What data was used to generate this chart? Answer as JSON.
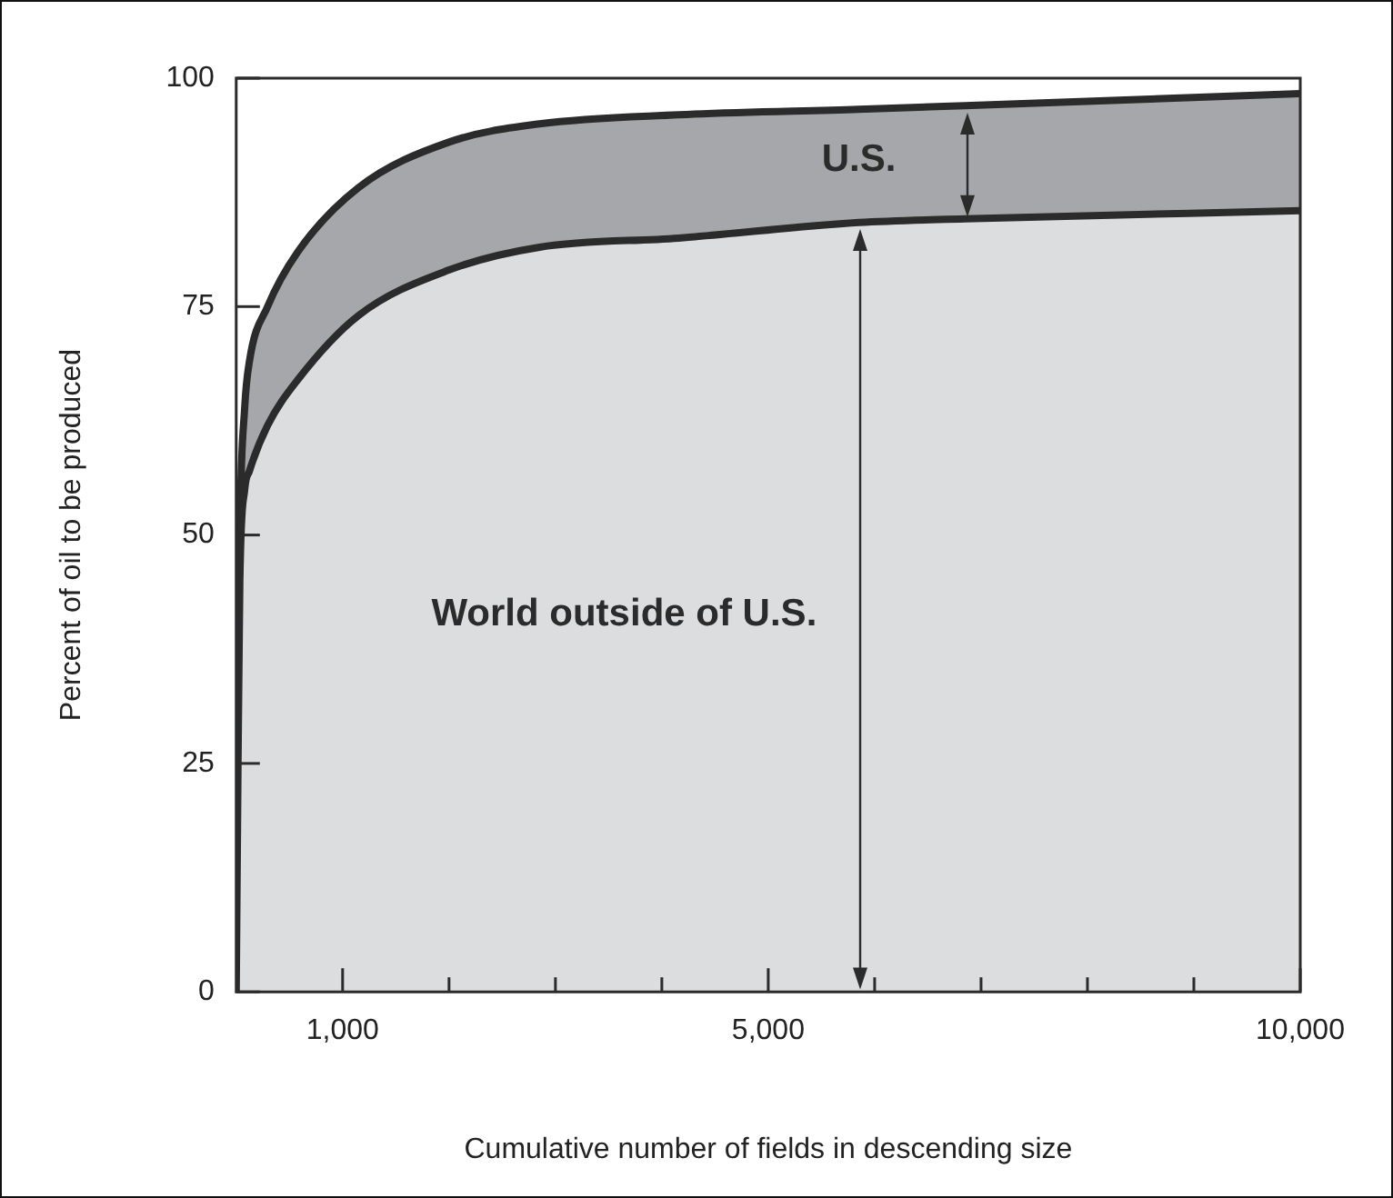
{
  "chart_data": {
    "type": "area",
    "stacked": true,
    "xlabel": "Cumulative number of fields in descending size",
    "ylabel": "Percent of oil to be produced",
    "x": [
      0,
      17,
      34,
      80,
      124,
      295,
      579,
      1147,
      1999,
      2851,
      4158,
      5850,
      6850,
      10000
    ],
    "series": [
      {
        "name": "World outside of U.S.",
        "color": "#dcdddf",
        "values": [
          0,
          25,
          45,
          55,
          57,
          62,
          67,
          74,
          79,
          81.5,
          82.5,
          84.2,
          84.6,
          85.5
        ]
      },
      {
        "name": "U.S.",
        "color": "#a6a7aa",
        "values": [
          0,
          5,
          5,
          9,
          12,
          13,
          14,
          14,
          14,
          13.5,
          13.5,
          12.4,
          12.4,
          12.8
        ]
      }
    ],
    "xlim": [
      0,
      10000
    ],
    "xticks": [
      {
        "value": 1000,
        "label": "1,000"
      },
      {
        "value": 2000,
        "label": null
      },
      {
        "value": 3000,
        "label": null
      },
      {
        "value": 4000,
        "label": null
      },
      {
        "value": 5000,
        "label": "5,000"
      },
      {
        "value": 6000,
        "label": null
      },
      {
        "value": 7000,
        "label": null
      },
      {
        "value": 8000,
        "label": null
      },
      {
        "value": 9000,
        "label": null
      },
      {
        "value": 10000,
        "label": "10,000"
      }
    ],
    "ylim": [
      0,
      100
    ],
    "yticks": [
      0,
      25,
      50,
      75,
      100
    ],
    "grid": false,
    "legend": false
  }
}
